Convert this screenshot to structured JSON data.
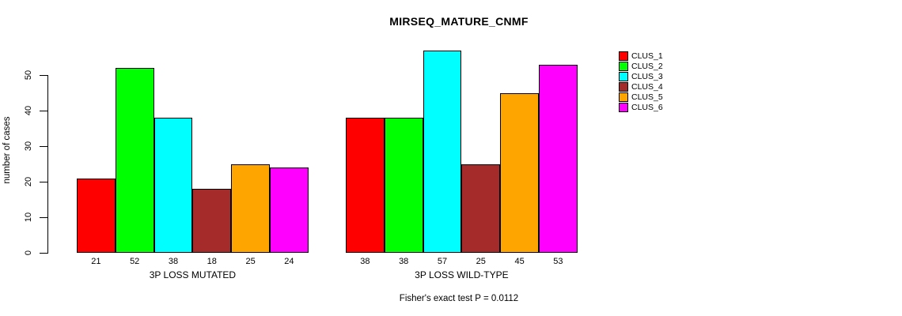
{
  "title": "MIRSEQ_MATURE_CNMF",
  "chart_data": {
    "type": "bar",
    "title": "MIRSEQ_MATURE_CNMF",
    "xlabel": "",
    "ylabel": "number of cases",
    "yticks": [
      0,
      10,
      20,
      30,
      40,
      50
    ],
    "ylim": [
      0,
      57
    ],
    "grid": false,
    "legend_position": "right",
    "categories": [
      "3P LOSS MUTATED",
      "3P LOSS WILD-TYPE"
    ],
    "groups": [
      {
        "label": "3P LOSS MUTATED",
        "values": [
          21,
          52,
          38,
          18,
          25,
          24
        ]
      },
      {
        "label": "3P LOSS WILD-TYPE",
        "values": [
          38,
          38,
          57,
          25,
          45,
          53
        ]
      }
    ],
    "series": [
      {
        "name": "CLUS_1",
        "color": "#FF0000",
        "values": [
          21,
          38
        ]
      },
      {
        "name": "CLUS_2",
        "color": "#00FF00",
        "values": [
          52,
          38
        ]
      },
      {
        "name": "CLUS_3",
        "color": "#00FFFF",
        "values": [
          38,
          57
        ]
      },
      {
        "name": "CLUS_4",
        "color": "#A52A2A",
        "values": [
          18,
          25
        ]
      },
      {
        "name": "CLUS_5",
        "color": "#FFA500",
        "values": [
          25,
          45
        ]
      },
      {
        "name": "CLUS_6",
        "color": "#FF00FF",
        "values": [
          24,
          53
        ]
      }
    ],
    "bar_value_labels_shown": true,
    "annotation": "Fisher's exact test P = 0.0112"
  }
}
